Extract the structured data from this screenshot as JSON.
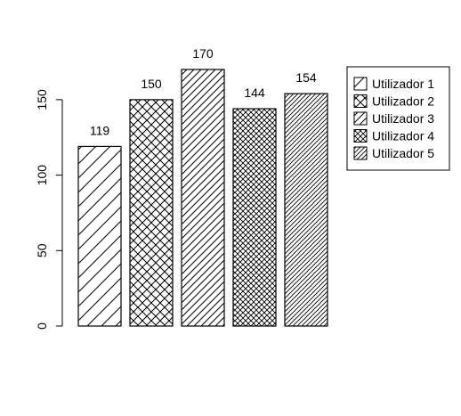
{
  "chart_data": {
    "type": "bar",
    "title": "",
    "xlabel": "",
    "ylabel": "",
    "categories": [
      "Utilizador 1",
      "Utilizador 2",
      "Utilizador 3",
      "Utilizador 4",
      "Utilizador 5"
    ],
    "values": [
      119,
      150,
      170,
      144,
      154
    ],
    "value_labels": [
      "119",
      "150",
      "170",
      "144",
      "154"
    ],
    "ylim": [
      0,
      170
    ],
    "yticks": [
      0,
      50,
      100,
      150
    ],
    "ytick_labels": [
      "0",
      "50",
      "100",
      "150"
    ],
    "grid": false,
    "legend": {
      "placement": "top-right",
      "entries": [
        "Utilizador 1",
        "Utilizador 2",
        "Utilizador 3",
        "Utilizador 4",
        "Utilizador 5"
      ]
    },
    "fill_patterns": [
      "diagonal-sparse",
      "crosshatch-medium",
      "diagonal-medium",
      "crosshatch-dense",
      "diagonal-dense"
    ],
    "colors": {
      "bar_stroke": "#000000",
      "bar_fill": "#ffffff",
      "pattern_stroke": "#000000"
    }
  }
}
